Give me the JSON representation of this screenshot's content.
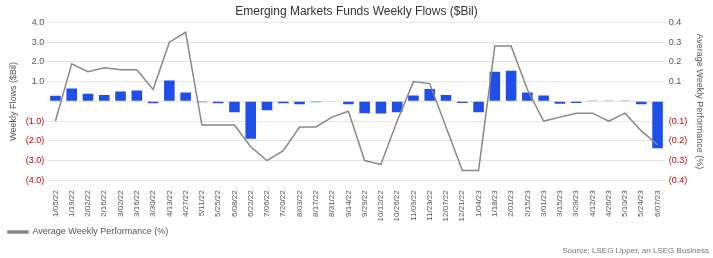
{
  "chart_data": {
    "type": "bar",
    "title": "Emerging Markets Funds Weekly Flows ($Bil)",
    "ylabel": "Weekly Flows ($Bil)",
    "y2label": "Average Weekly Performance (%)",
    "annotations": [
      "Source: LSEG Lipper, an LSEG Business"
    ],
    "categories": [
      "1/05/22",
      "1/19/22",
      "2/02/22",
      "2/16/22",
      "3/02/22",
      "3/16/22",
      "3/30/22",
      "4/13/22",
      "4/27/22",
      "5/11/22",
      "5/25/22",
      "6/08/22",
      "6/22/22",
      "7/06/22",
      "7/20/22",
      "8/03/22",
      "8/17/22",
      "8/31/22",
      "9/14/22",
      "9/29/22",
      "10/12/22",
      "10/26/22",
      "11/09/22",
      "11/23/22",
      "12/07/22",
      "12/21/22",
      "1/04/23",
      "1/18/23",
      "2/01/23",
      "2/15/23",
      "3/01/23",
      "3/15/23",
      "3/29/23",
      "4/12/23",
      "4/26/23",
      "5/10/23",
      "5/24/23",
      "6/07/23"
    ],
    "series": [
      {
        "type": "bar",
        "color": "#1f4fe8",
        "values": [
          0.28,
          0.65,
          0.38,
          0.32,
          0.5,
          0.55,
          -0.1,
          1.05,
          0.45,
          -0.05,
          -0.1,
          -0.55,
          -1.9,
          -0.45,
          -0.1,
          -0.15,
          -0.05,
          0.0,
          -0.15,
          -0.6,
          -0.62,
          -0.55,
          0.3,
          0.62,
          0.32,
          -0.08,
          -0.55,
          1.5,
          1.55,
          0.45,
          0.3,
          -0.12,
          -0.08,
          0.02,
          0.02,
          0.02,
          -0.15,
          -2.38
        ]
      },
      {
        "name": "Average Weekly Performance (%)",
        "type": "line",
        "color": "#888888",
        "axis": "y2",
        "values": [
          -0.1,
          0.19,
          0.15,
          0.17,
          0.16,
          0.16,
          0.06,
          0.3,
          0.35,
          -0.12,
          -0.12,
          -0.12,
          -0.23,
          -0.3,
          -0.25,
          -0.13,
          -0.13,
          -0.08,
          -0.05,
          -0.3,
          -0.32,
          -0.1,
          0.1,
          0.09,
          -0.13,
          -0.35,
          -0.35,
          0.28,
          0.28,
          0.06,
          -0.1,
          -0.08,
          -0.06,
          -0.06,
          -0.1,
          -0.06,
          -0.15,
          -0.22
        ]
      }
    ],
    "ylim": [
      -4.0,
      4.0
    ],
    "yticks": [
      {
        "value": -4.0,
        "label": "(4.0)"
      },
      {
        "value": -3.0,
        "label": "(3.0)"
      },
      {
        "value": -2.0,
        "label": "(2.0)"
      },
      {
        "value": -1.0,
        "label": "(1.0)"
      },
      {
        "value": 0.0,
        "label": null
      },
      {
        "value": 1.0,
        "label": "1.0"
      },
      {
        "value": 2.0,
        "label": "2.0"
      },
      {
        "value": 3.0,
        "label": "3.0"
      },
      {
        "value": 4.0,
        "label": "4.0"
      }
    ],
    "y2lim": [
      -0.4,
      0.4
    ],
    "y2ticks": [
      {
        "value": -0.4,
        "label": "(0.4)"
      },
      {
        "value": -0.3,
        "label": "(0.3)"
      },
      {
        "value": -0.2,
        "label": "(0.2)"
      },
      {
        "value": -0.1,
        "label": "(0.1)"
      },
      {
        "value": 0.0,
        "label": null
      },
      {
        "value": 0.1,
        "label": "0.1"
      },
      {
        "value": 0.2,
        "label": "0.2"
      },
      {
        "value": 0.3,
        "label": "0.3"
      },
      {
        "value": 0.4,
        "label": "0.4"
      }
    ],
    "grid": true,
    "legend": "lower left"
  }
}
